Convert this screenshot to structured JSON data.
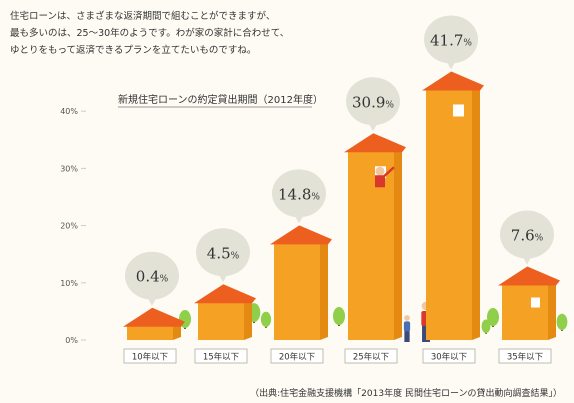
{
  "intro_lines": [
    "住宅ローンは、さまざまな返済期間で組むことができますが、",
    "最も多いのは、25〜30年のようです。わが家の家計に合わせて、",
    "ゆとりをもって返済できるプランを立てたいものですね。"
  ],
  "source_note": "（出典:住宅金融支援機構「2013年度 民間住宅ローンの貸出動向調査結果」）",
  "colors": {
    "house_body": "#f4a124",
    "house_side": "#e48a12",
    "roof": "#ec5f1e",
    "bubble": "#e3e2d7",
    "tree": "#8fcf4a",
    "axis_text": "#555555",
    "gridline": "#cccccc"
  },
  "chart_data": {
    "type": "bar",
    "title": "新規住宅ローンの約定貸出期間（2012年度）",
    "categories": [
      "10年以下",
      "15年以下",
      "20年以下",
      "25年以下",
      "30年以下",
      "35年以下"
    ],
    "values": [
      0.4,
      4.5,
      14.8,
      30.9,
      41.7,
      7.6
    ],
    "value_labels": [
      "0.4",
      "4.5",
      "14.8",
      "30.9",
      "41.7",
      "7.6"
    ],
    "unit": "%",
    "y_ticks": [
      "0%",
      "10%",
      "20%",
      "30%",
      "40%"
    ],
    "y_tick_values": [
      0,
      10,
      20,
      30,
      40
    ],
    "ylim": [
      0,
      45
    ],
    "grid": false,
    "legend": "none"
  }
}
